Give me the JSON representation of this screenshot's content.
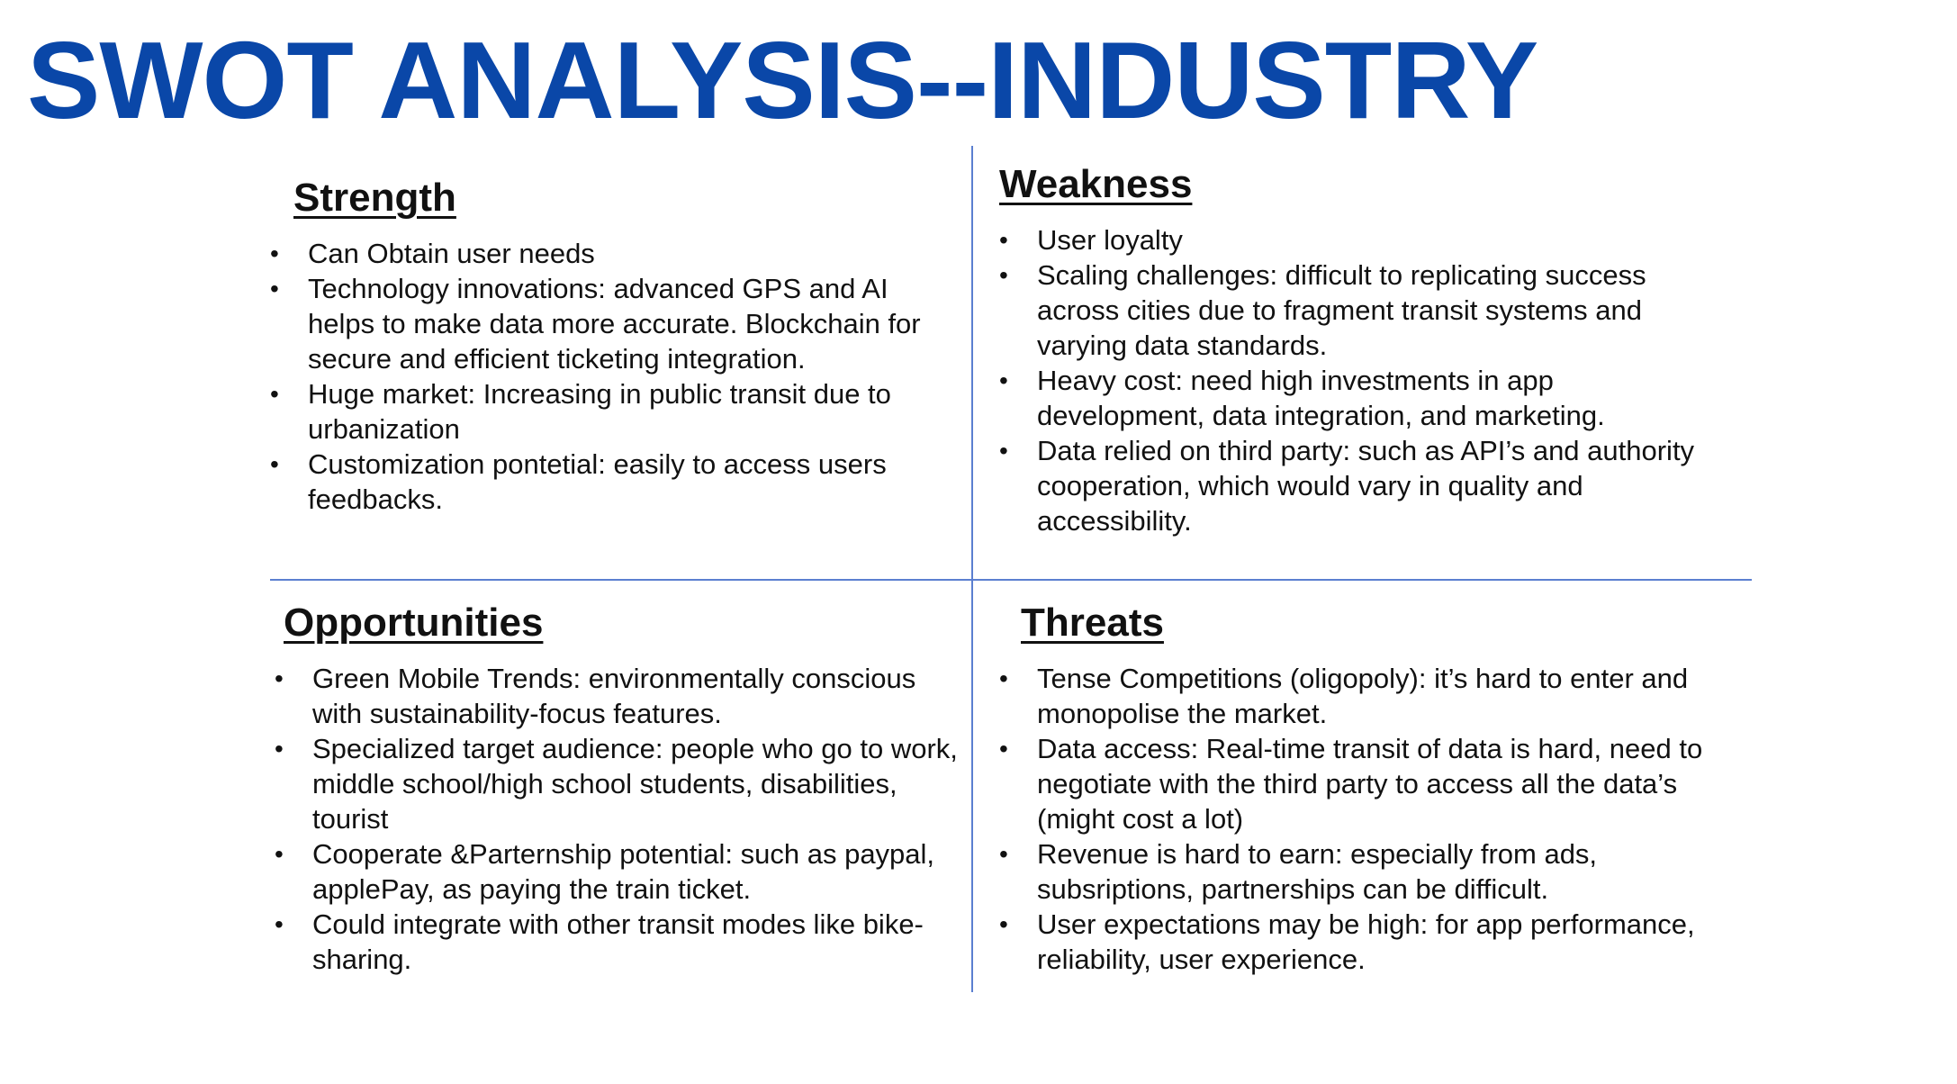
{
  "colors": {
    "title": "#0a47a8",
    "divider": "#5b7fd0",
    "text": "#111111"
  },
  "title": "SWOT ANALYSIS--INDUSTRY",
  "strength": {
    "heading": "Strength",
    "items": [
      "Can Obtain user needs",
      "Technology innovations: advanced GPS and AI helps to make data more accurate. Blockchain for secure and efficient ticketing integration.",
      "Huge market: Increasing in public transit due to urbanization",
      "Customization pontetial: easily to access users feedbacks."
    ]
  },
  "weakness": {
    "heading": "Weakness",
    "items": [
      "User loyalty",
      "Scaling challenges: difficult to replicating success across cities due to fragment transit systems and varying data standards.",
      "Heavy cost: need high investments in app development, data integration, and marketing.",
      "Data relied on third party: such as API’s and authority cooperation, which would vary in quality and accessibility."
    ]
  },
  "opportunities": {
    "heading": "Opportunities",
    "items": [
      "Green Mobile Trends: environmentally conscious with sustainability-focus features.",
      "Specialized target audience: people who go to work, middle school/high school students, disabilities, tourist",
      "Cooperate &Parternship potential: such as paypal, applePay, as paying the train ticket.",
      "Could integrate with other transit modes like bike-sharing."
    ]
  },
  "threats": {
    "heading": "Threats",
    "items": [
      "Tense Competitions (oligopoly): it’s hard to enter and monopolise the market.",
      "Data access: Real-time transit of data is hard, need to negotiate with the third party to access all the data’s (might cost a lot)",
      "Revenue is hard to earn: especially from ads, subsriptions, partnerships can be difficult.",
      "User expectations may be high: for app performance, reliability, user experience."
    ]
  }
}
